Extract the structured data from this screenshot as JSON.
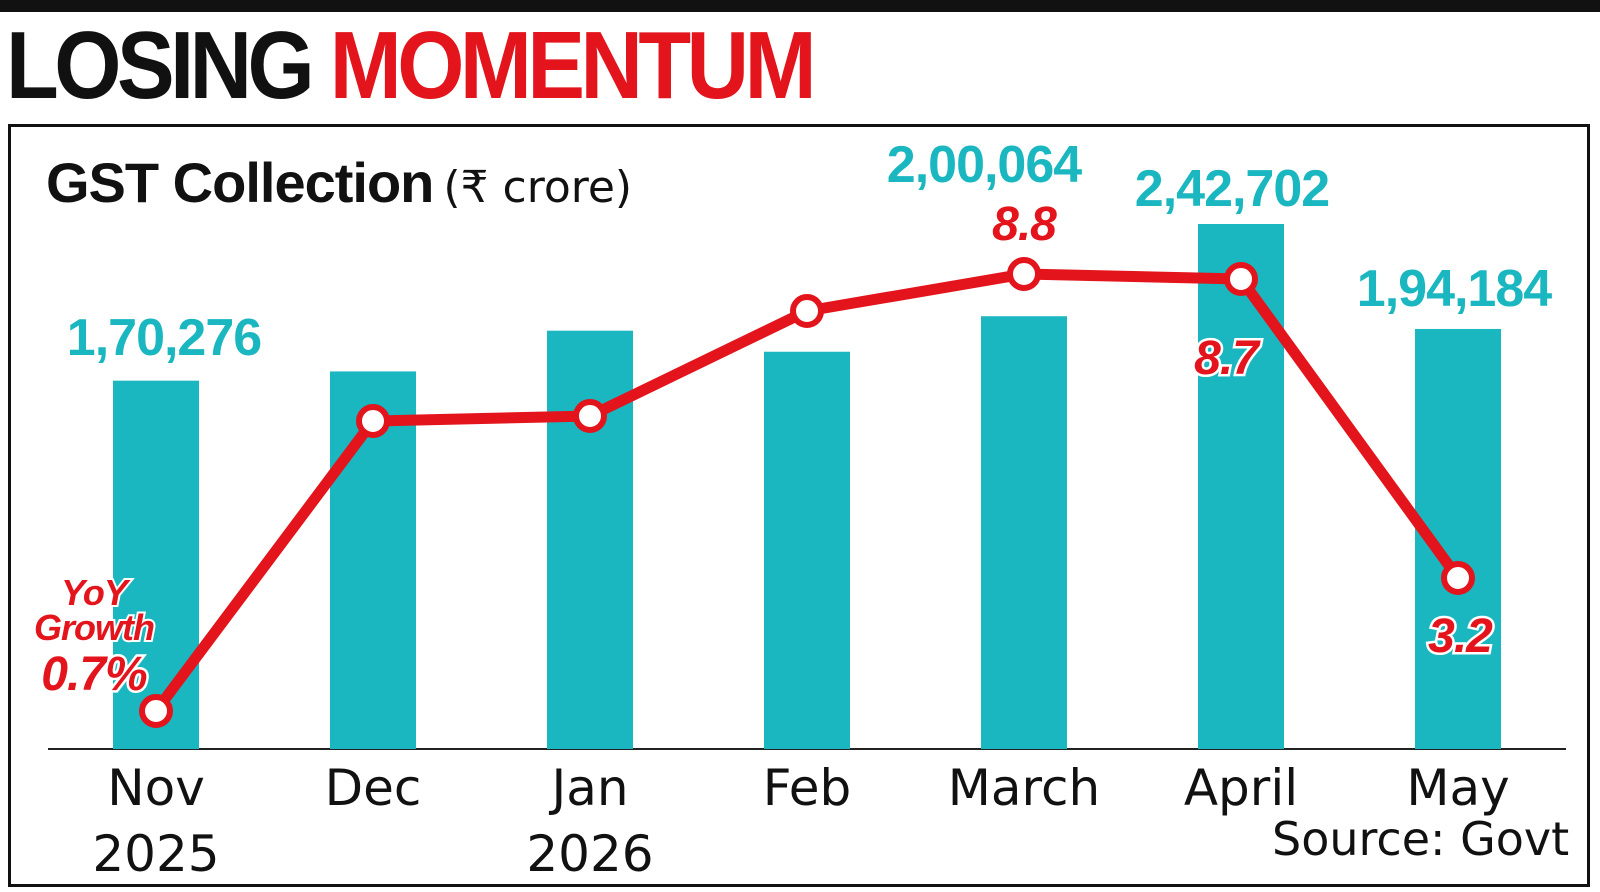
{
  "headline": {
    "word1": "LOSING",
    "word2": "MOMENTUM"
  },
  "chart_data": {
    "type": "bar",
    "title": "GST Collection",
    "unit": "(₹ crore)",
    "categories": [
      "Nov 2025",
      "Dec",
      "Jan 2026",
      "Feb",
      "March",
      "April",
      "May"
    ],
    "series": [
      {
        "name": "GST Collection",
        "type": "bar",
        "color": "#1ab7c1",
        "values": [
          170276,
          174550,
          193384,
          183646,
          200064,
          242702,
          194184
        ],
        "labels": [
          "1,70,276",
          "",
          "",
          "",
          "2,00,064",
          "2,42,702",
          "1,94,184"
        ]
      },
      {
        "name": "YoY Growth",
        "type": "line",
        "color": "#e3141b",
        "values": [
          0.7,
          6.1,
          6.2,
          8.1,
          8.8,
          8.7,
          3.2
        ],
        "labels": [
          "0.7%",
          "",
          "",
          "",
          "8.8",
          "8.7",
          "3.2"
        ]
      }
    ],
    "line_annotation": [
      "YoY",
      "Growth"
    ],
    "bar_ylim": [
      0,
      265000
    ],
    "line_ylim": [
      0,
      9.5
    ]
  },
  "source": "Source: Govt"
}
